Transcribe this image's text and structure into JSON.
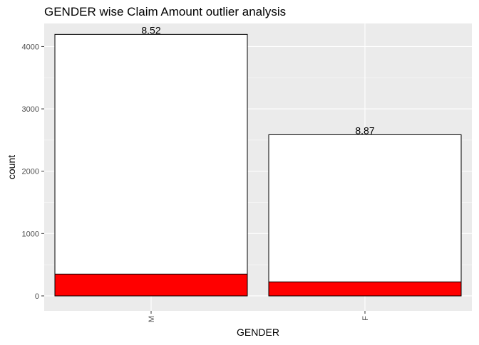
{
  "chart_data": {
    "type": "bar",
    "title": "GENDER wise Claim Amount outlier analysis",
    "xlabel": "GENDER",
    "ylabel": "count",
    "categories": [
      "M",
      "F"
    ],
    "series": [
      {
        "values": [
          4195,
          2585
        ],
        "color": "#ffffff"
      },
      {
        "values": [
          350,
          225
        ],
        "color": "#ff0000"
      }
    ],
    "data_labels": [
      "8.52",
      "8.87"
    ],
    "ylim": [
      -240,
      4370
    ],
    "yticks": [
      0,
      1000,
      2000,
      3000,
      4000
    ],
    "grid": true,
    "legend": "none",
    "panel_background": "#ebebeb",
    "gridline_color": "#ffffff",
    "bar_outline": "#000000"
  }
}
